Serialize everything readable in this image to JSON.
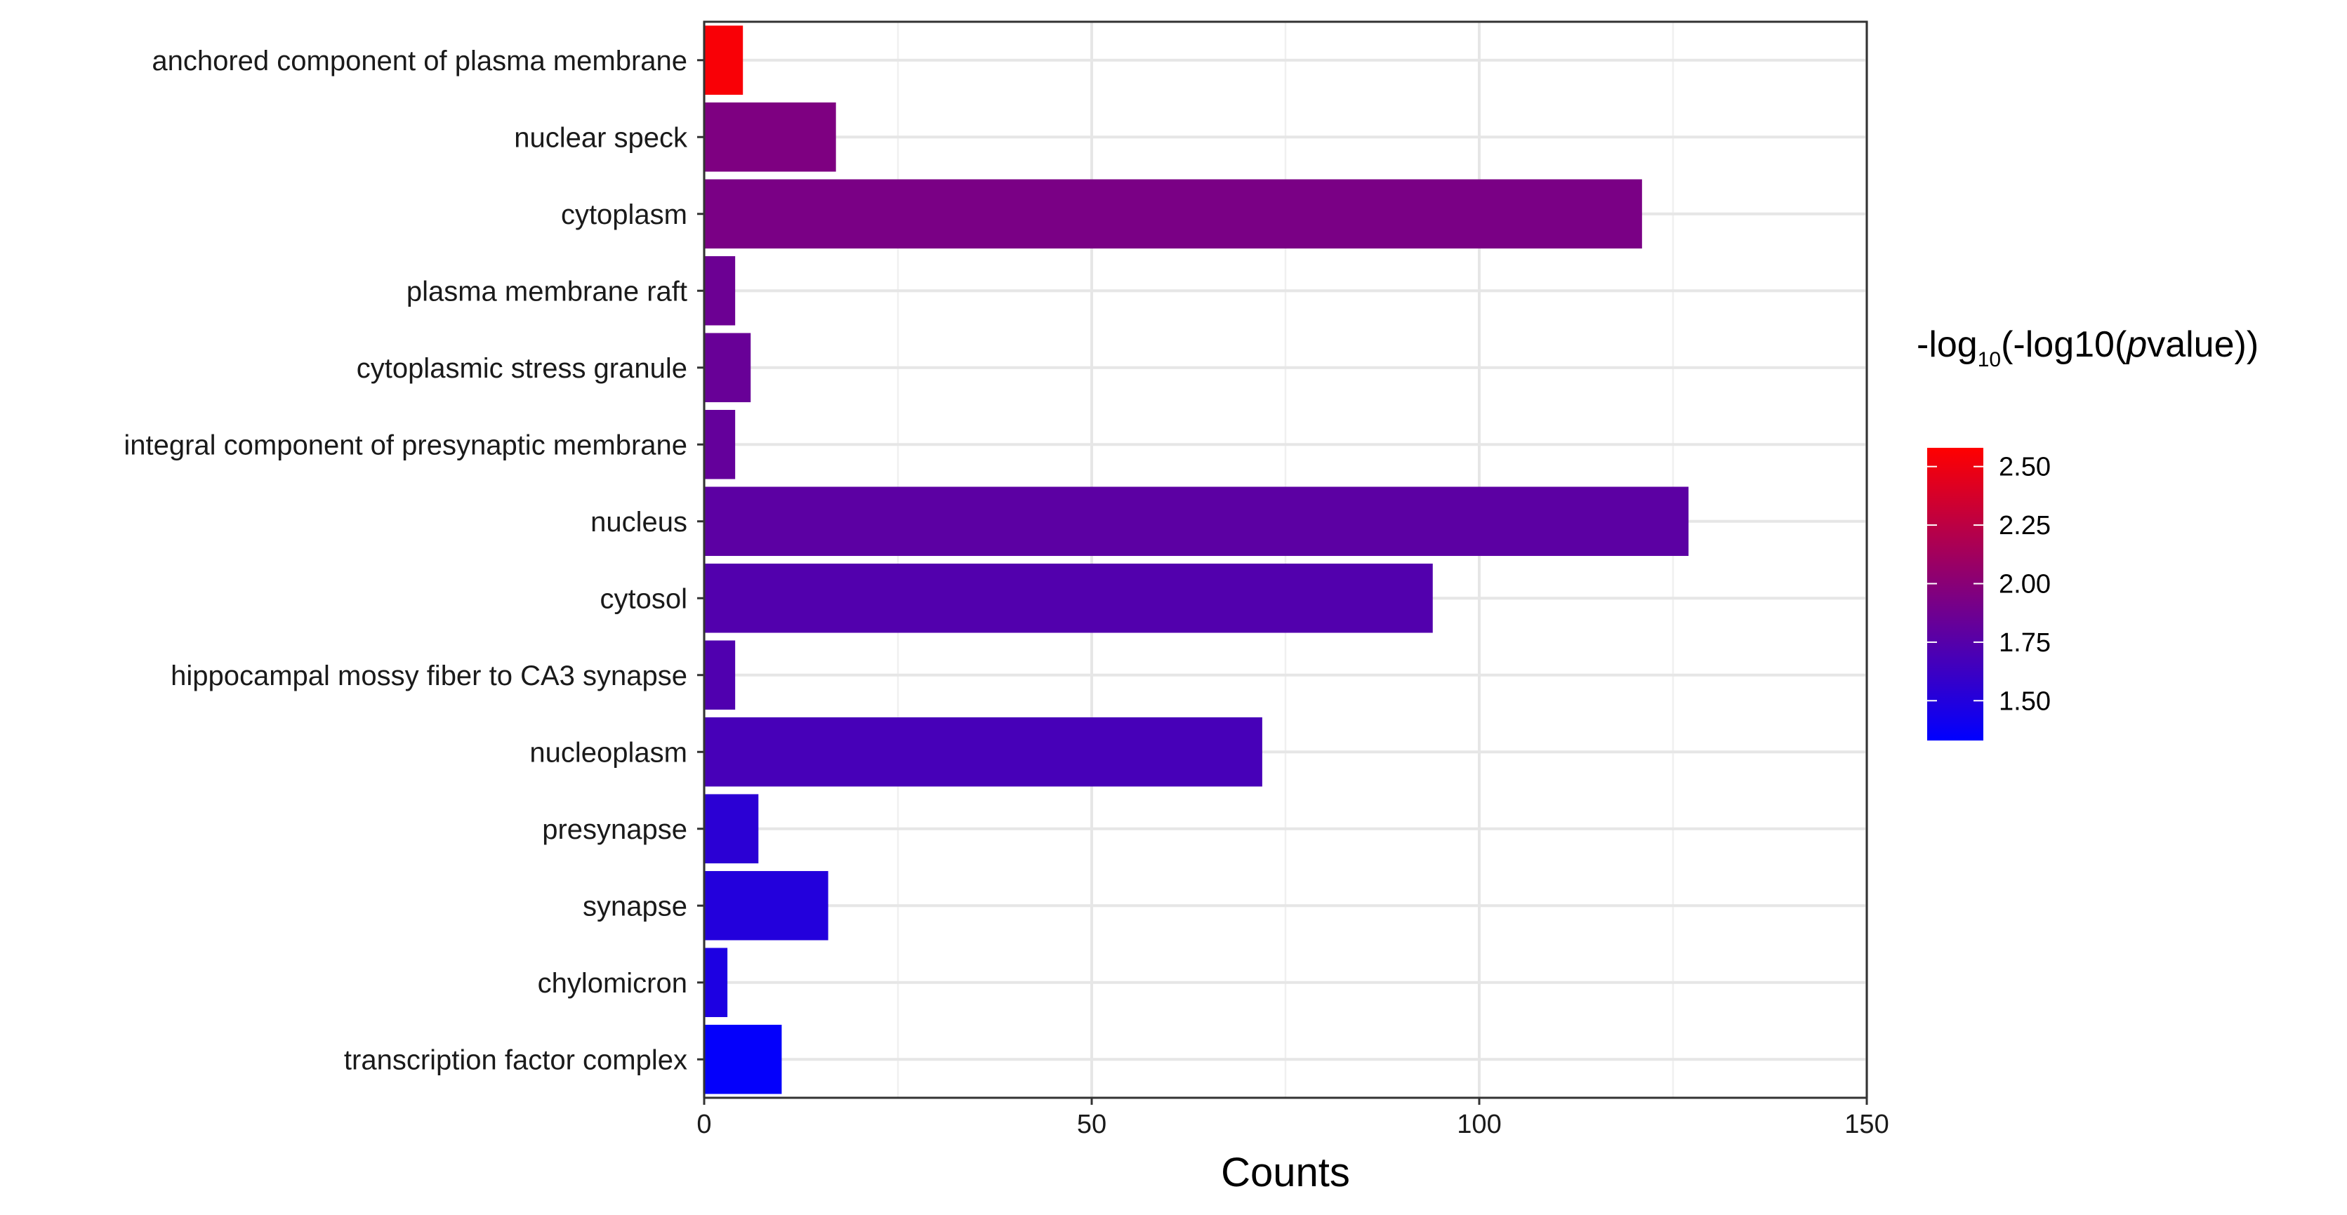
{
  "chart_data": {
    "type": "bar",
    "orientation": "horizontal",
    "categories": [
      "anchored component of plasma membrane",
      "nuclear speck",
      "cytoplasm",
      "plasma membrane raft",
      "cytoplasmic stress granule",
      "integral component of presynaptic membrane",
      "nucleus",
      "cytosol",
      "hippocampal mossy fiber to CA3 synapse",
      "nucleoplasm",
      "presynapse",
      "synapse",
      "chylomicron",
      "transcription factor complex"
    ],
    "values": [
      5,
      17,
      121,
      4,
      6,
      4,
      127,
      94,
      4,
      72,
      7,
      16,
      3,
      10
    ],
    "color_values": [
      2.55,
      1.95,
      1.93,
      1.86,
      1.84,
      1.82,
      1.78,
      1.73,
      1.72,
      1.68,
      1.54,
      1.5,
      1.47,
      1.35
    ],
    "xlabel": "Counts",
    "ylabel": "",
    "xlim": [
      0,
      150
    ],
    "x_ticks": [
      "0",
      "50",
      "100",
      "150"
    ],
    "x_tick_values": [
      0,
      50,
      100,
      150
    ],
    "grid": true,
    "legend": {
      "title_prefix": "-log",
      "title_subscript": "10",
      "title_mid": "(-log10(",
      "title_italic": "p",
      "title_suffix": "value))",
      "ticks": [
        "2.50",
        "2.25",
        "2.00",
        "1.75",
        "1.50"
      ],
      "tick_values": [
        2.5,
        2.25,
        2.0,
        1.75,
        1.5
      ],
      "range": [
        1.33,
        2.58
      ],
      "low_color": "#0000ff",
      "high_color": "#ff0000",
      "placement": "right"
    }
  }
}
